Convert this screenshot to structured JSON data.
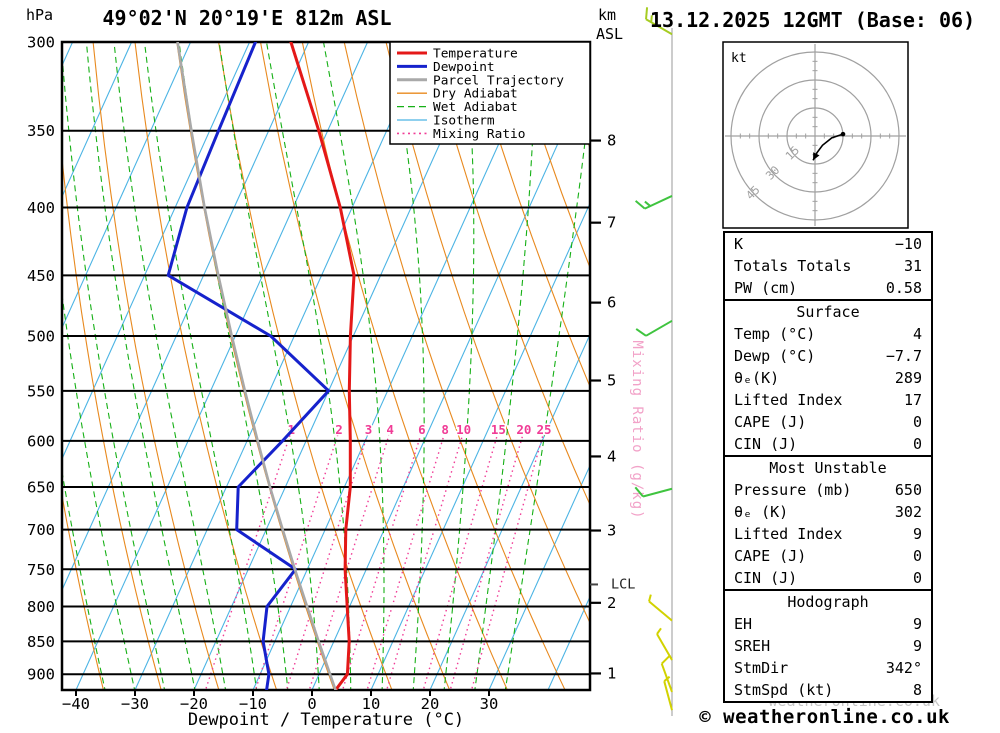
{
  "header": {
    "pressure_unit": "hPa",
    "station_title": "49°02'N 20°19'E 812m ASL",
    "altitude_unit_km": "km",
    "altitude_unit_asl": "ASL",
    "datetime_title": "13.12.2025 12GMT (Base: 06)"
  },
  "axes": {
    "xlabel": "Dewpoint / Temperature (°C)",
    "pressure_ticks": [
      300,
      350,
      400,
      450,
      500,
      550,
      600,
      650,
      700,
      750,
      800,
      850,
      900
    ],
    "temp_ticks": [
      -40,
      -30,
      -20,
      -10,
      0,
      10,
      20,
      30
    ],
    "km_ticks": [
      1,
      2,
      3,
      4,
      5,
      6,
      7,
      8
    ],
    "mixing_ratio_axis_label": "Mixing Ratio (g/kg)",
    "lcl_label": "LCL"
  },
  "palette": {
    "temperature": "#e41818",
    "dewpoint": "#1622cc",
    "parcel": "#a9a9a9",
    "dry_adiabat": "#e8891e",
    "wet_adiabat": "#16b016",
    "isotherm": "#4cb4e4",
    "mixing_ratio": "#f03c96",
    "mixing_axis_label": "#f2a2c8",
    "barb_yellow": "#d2d200",
    "barb_green": "#3fc43f",
    "barb_lime": "#a6cc22",
    "hodograph_gray": "#a0a0a0"
  },
  "legend": {
    "items": [
      {
        "label": "Temperature",
        "color_key": "temperature",
        "style": "solid",
        "width": 3
      },
      {
        "label": "Dewpoint",
        "color_key": "dewpoint",
        "style": "solid",
        "width": 3
      },
      {
        "label": "Parcel Trajectory",
        "color_key": "parcel",
        "style": "solid",
        "width": 3
      },
      {
        "label": "Dry Adiabat",
        "color_key": "dry_adiabat",
        "style": "solid",
        "width": 1.3
      },
      {
        "label": "Wet Adiabat",
        "color_key": "wet_adiabat",
        "style": "dashed",
        "width": 1.3
      },
      {
        "label": "Isotherm",
        "color_key": "isotherm",
        "style": "solid",
        "width": 1.3
      },
      {
        "label": "Mixing Ratio",
        "color_key": "mixing_ratio",
        "style": "dotted",
        "width": 1.6
      }
    ]
  },
  "chart_data": {
    "type": "line",
    "subtype": "skew-t-log-p-sounding",
    "pressure_axis_range_hpa": [
      300,
      925
    ],
    "isotherm_step_c": 10,
    "dry_adiabat_theta_step_c": 10,
    "wet_adiabat_start_temps_c": [
      -30,
      -25,
      -20,
      -15,
      -10,
      -5,
      0,
      5,
      10,
      15,
      20,
      25,
      30,
      35
    ],
    "mixing_ratio_values_g_kg": [
      1,
      2,
      3,
      4,
      6,
      8,
      10,
      15,
      20,
      25
    ],
    "lcl_pressure_hpa": 770,
    "series": [
      {
        "name": "Temperature",
        "color_key": "temperature",
        "width": 3,
        "points_p_hpa_t_c": [
          [
            925,
            4
          ],
          [
            900,
            4.8
          ],
          [
            850,
            2.6
          ],
          [
            800,
            -0.4
          ],
          [
            750,
            -3.6
          ],
          [
            700,
            -6.5
          ],
          [
            650,
            -9
          ],
          [
            600,
            -12.5
          ],
          [
            550,
            -16.5
          ],
          [
            500,
            -20.5
          ],
          [
            450,
            -24.5
          ],
          [
            400,
            -32
          ],
          [
            350,
            -41.5
          ],
          [
            300,
            -53
          ]
        ]
      },
      {
        "name": "Dewpoint",
        "color_key": "dewpoint",
        "width": 3,
        "points_p_hpa_t_c": [
          [
            925,
            -7.7
          ],
          [
            900,
            -8.5
          ],
          [
            850,
            -12
          ],
          [
            800,
            -14
          ],
          [
            750,
            -12
          ],
          [
            700,
            -25
          ],
          [
            650,
            -28
          ],
          [
            600,
            -24
          ],
          [
            550,
            -20
          ],
          [
            500,
            -34
          ],
          [
            450,
            -56
          ],
          [
            400,
            -58
          ],
          [
            350,
            -58.5
          ],
          [
            300,
            -59
          ]
        ]
      },
      {
        "name": "Parcel Trajectory",
        "color_key": "parcel",
        "width": 2.6,
        "points_p_hpa_t_c": [
          [
            925,
            4
          ],
          [
            850,
            -2.6
          ],
          [
            800,
            -7.2
          ],
          [
            750,
            -12.1
          ],
          [
            700,
            -17.2
          ],
          [
            650,
            -22.6
          ],
          [
            600,
            -28.2
          ],
          [
            550,
            -34.2
          ],
          [
            500,
            -40.6
          ],
          [
            450,
            -47.5
          ],
          [
            400,
            -55
          ],
          [
            350,
            -63.1
          ],
          [
            300,
            -72.2
          ]
        ]
      }
    ],
    "wind_barbs": [
      {
        "pressure_hpa": 296,
        "dir_deg": 300,
        "speed_kt": 15,
        "color_key": "barb_lime"
      },
      {
        "pressure_hpa": 392,
        "dir_deg": 245,
        "speed_kt": 15,
        "color_key": "barb_green"
      },
      {
        "pressure_hpa": 487,
        "dir_deg": 240,
        "speed_kt": 10,
        "color_key": "barb_green"
      },
      {
        "pressure_hpa": 652,
        "dir_deg": 255,
        "speed_kt": 10,
        "color_key": "barb_green"
      },
      {
        "pressure_hpa": 820,
        "dir_deg": 310,
        "speed_kt": 5,
        "color_key": "barb_yellow"
      },
      {
        "pressure_hpa": 878,
        "dir_deg": 330,
        "speed_kt": 5,
        "color_key": "barb_yellow"
      },
      {
        "pressure_hpa": 928,
        "dir_deg": 340,
        "speed_kt": 10,
        "color_key": "barb_yellow"
      },
      {
        "pressure_hpa": 958,
        "dir_deg": 345,
        "speed_kt": 8,
        "color_key": "barb_yellow"
      }
    ]
  },
  "hodograph": {
    "unit_label": "kt",
    "ring_values_kt": [
      15,
      30,
      45
    ],
    "trace_uv_kt": [
      [
        15,
        1
      ],
      [
        9,
        -1
      ],
      [
        4,
        -5
      ],
      [
        1,
        -9
      ],
      [
        -1,
        -13
      ]
    ]
  },
  "table": {
    "summary": {
      "rows": [
        {
          "label": "K",
          "value": "−10"
        },
        {
          "label": "Totals Totals",
          "value": "31"
        },
        {
          "label": "PW (cm)",
          "value": "0.58"
        }
      ]
    },
    "surface": {
      "title": "Surface",
      "rows": [
        {
          "label": "Temp (°C)",
          "value": "4"
        },
        {
          "label": "Dewp (°C)",
          "value": "−7.7"
        },
        {
          "label": "θₑ(K)",
          "value": "289"
        },
        {
          "label": "Lifted Index",
          "value": "17"
        },
        {
          "label": "CAPE (J)",
          "value": "0"
        },
        {
          "label": "CIN (J)",
          "value": "0"
        }
      ]
    },
    "most_unstable": {
      "title": "Most Unstable",
      "rows": [
        {
          "label": "Pressure (mb)",
          "value": "650"
        },
        {
          "label": "θₑ (K)",
          "value": "302"
        },
        {
          "label": "Lifted Index",
          "value": "9"
        },
        {
          "label": "CAPE (J)",
          "value": "0"
        },
        {
          "label": "CIN (J)",
          "value": "0"
        }
      ]
    },
    "hodograph_stats": {
      "title": "Hodograph",
      "rows": [
        {
          "label": "EH",
          "value": "9"
        },
        {
          "label": "SREH",
          "value": "9"
        },
        {
          "label": "StmDir",
          "value": "342°"
        },
        {
          "label": "StmSpd (kt)",
          "value": "8"
        }
      ]
    }
  },
  "footer": {
    "watermark": "weatheronline.co.uk",
    "copyright": "© weatheronline.co.uk"
  }
}
